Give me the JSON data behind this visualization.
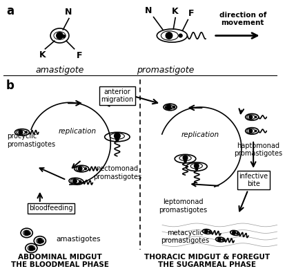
{
  "bg_color": "#ffffff",
  "black": "#000000",
  "section_a_label": "a",
  "section_b_label": "b",
  "amastigote_label": "amastigote",
  "promastigote_label": "promastigote",
  "direction_label": "direction of\nmovement",
  "anterior_migration_label": "anterior\nmigration",
  "replication_label_left": "replication",
  "replication_label_right": "replication",
  "procyclic_label": "procyclic\npromastigotes",
  "bloodfeeding_label": "bloodfeeding",
  "amastigotes_label": "amastigotes",
  "nectomonad_label": "nectomonad\npromastigotes",
  "leptomonad_label": "leptomonad\npromastigotes",
  "metacyclic_label": "metacyclic\npromastigotes",
  "haptomonad_label": "haptomonad\npromastigotes",
  "infective_label": "infective\nbite",
  "abdominal_label": "ABDOMINAL MIDGUT\nTHE BLOODMEAL PHASE",
  "thoracic_label": "THORACIC MIDGUT & FOREGUT\nTHE SUGARMEAL PHASE"
}
